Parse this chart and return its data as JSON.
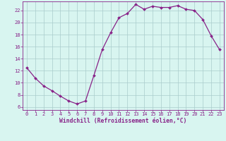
{
  "x": [
    0,
    1,
    2,
    3,
    4,
    5,
    6,
    7,
    8,
    9,
    10,
    11,
    12,
    13,
    14,
    15,
    16,
    17,
    18,
    19,
    20,
    21,
    22,
    23
  ],
  "y": [
    12.5,
    10.8,
    9.5,
    8.7,
    7.8,
    7.0,
    6.5,
    7.0,
    11.2,
    15.5,
    18.3,
    20.8,
    21.5,
    23.0,
    22.2,
    22.7,
    22.5,
    22.5,
    22.8,
    22.2,
    22.0,
    20.5,
    17.8,
    15.5
  ],
  "line_color": "#882288",
  "marker": "D",
  "marker_size": 2.0,
  "bg_color": "#d8f5f0",
  "grid_color": "#aacccc",
  "xlabel": "Windchill (Refroidissement éolien,°C)",
  "xlabel_color": "#882288",
  "tick_color": "#882288",
  "spine_color": "#882288",
  "xlim": [
    -0.5,
    23.5
  ],
  "ylim": [
    5.5,
    23.5
  ],
  "yticks": [
    6,
    8,
    10,
    12,
    14,
    16,
    18,
    20,
    22
  ],
  "xticks": [
    0,
    1,
    2,
    3,
    4,
    5,
    6,
    7,
    8,
    9,
    10,
    11,
    12,
    13,
    14,
    15,
    16,
    17,
    18,
    19,
    20,
    21,
    22,
    23
  ],
  "tick_fontsize": 5.0,
  "xlabel_fontsize": 5.8,
  "linewidth": 0.9
}
